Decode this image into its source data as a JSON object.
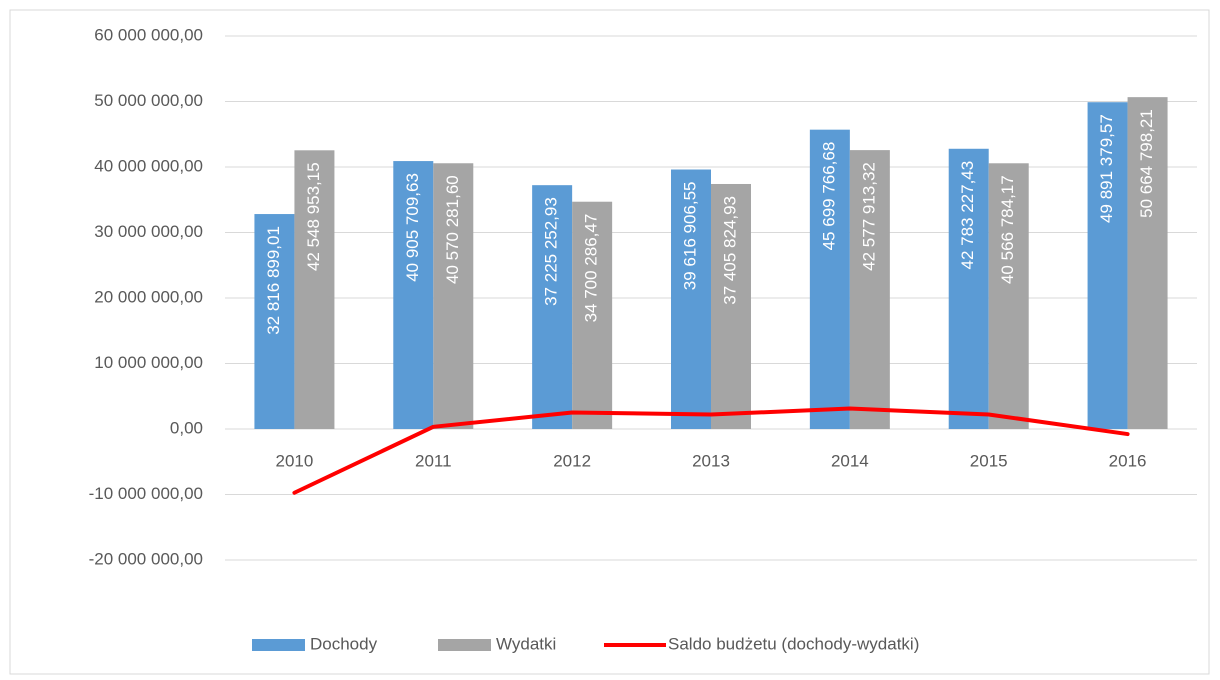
{
  "chart_data": {
    "type": "bar",
    "categories": [
      "2010",
      "2011",
      "2012",
      "2013",
      "2014",
      "2015",
      "2016"
    ],
    "series": [
      {
        "name": "Dochody",
        "type": "bar",
        "color": "#5b9bd5",
        "values": [
          32816899.01,
          40905709.63,
          37225252.93,
          39616906.55,
          45699766.68,
          42783227.43,
          49891379.57
        ],
        "value_labels": [
          "32 816 899,01",
          "40 905 709,63",
          "37 225 252,93",
          "39 616 906,55",
          "45 699 766,68",
          "42 783 227,43",
          "49 891 379,57"
        ]
      },
      {
        "name": "Wydatki",
        "type": "bar",
        "color": "#a5a5a5",
        "values": [
          42548953.15,
          40570281.6,
          34700286.47,
          37405824.93,
          42577913.32,
          40566784.17,
          50664798.21
        ],
        "value_labels": [
          "42 548 953,15",
          "40 570 281,60",
          "34 700 286,47",
          "37 405 824,93",
          "42 577 913,32",
          "40 566 784,17",
          "50 664 798,21"
        ]
      },
      {
        "name": "Saldo budżetu (dochody-wydatki)",
        "type": "line",
        "color": "#ff0000",
        "values": [
          -9732054.14,
          335428.03,
          2524966.46,
          2211081.62,
          3121853.36,
          2216443.26,
          -773418.64
        ]
      }
    ],
    "ylim": [
      -20000000,
      60000000
    ],
    "yticks": [
      {
        "value": -20000000,
        "label": "-20 000 000,00"
      },
      {
        "value": -10000000,
        "label": "-10 000 000,00"
      },
      {
        "value": 0,
        "label": "0,00"
      },
      {
        "value": 10000000,
        "label": "10 000 000,00"
      },
      {
        "value": 20000000,
        "label": "20 000 000,00"
      },
      {
        "value": 30000000,
        "label": "30 000 000,00"
      },
      {
        "value": 40000000,
        "label": "40 000 000,00"
      },
      {
        "value": 50000000,
        "label": "50 000 000,00"
      },
      {
        "value": 60000000,
        "label": "60 000 000,00"
      }
    ],
    "grid": true,
    "legend": "bottom"
  }
}
